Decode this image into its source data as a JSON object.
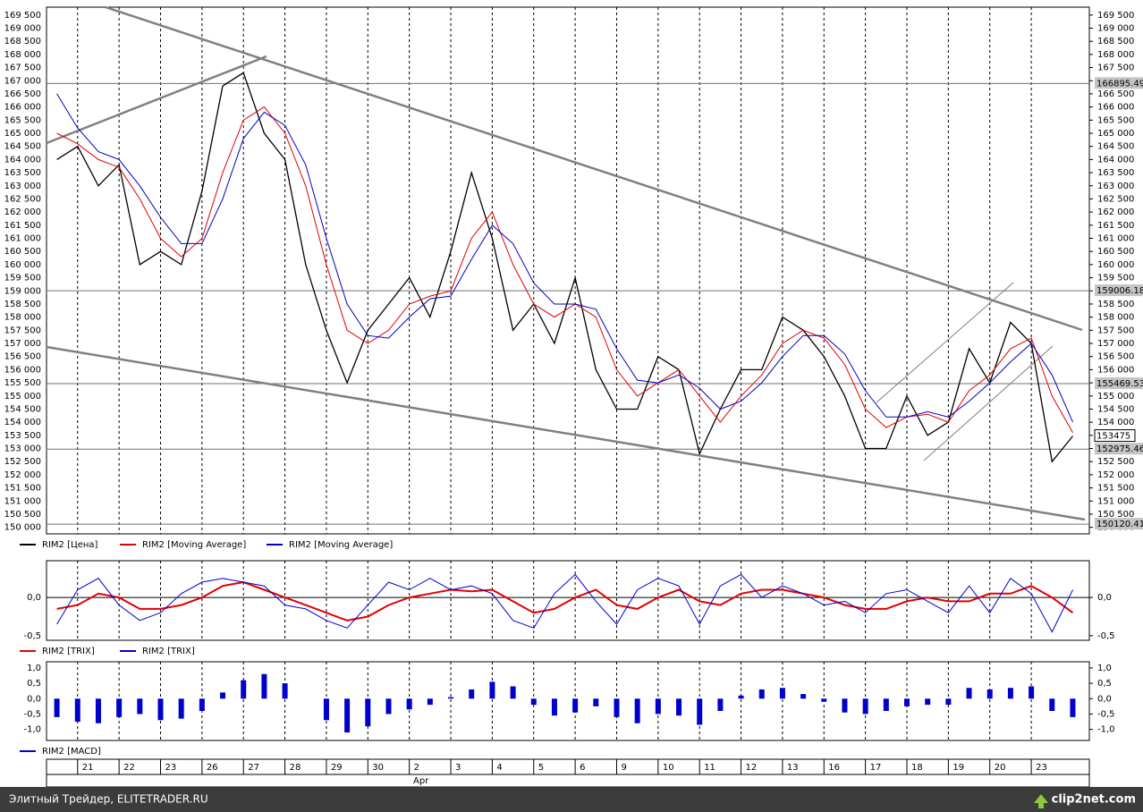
{
  "chart_data": [
    {
      "type": "line",
      "x": [
        -0.5,
        0,
        0.5,
        1,
        1.5,
        2,
        2.5,
        3,
        3.5,
        4,
        4.5,
        5,
        5.5,
        6,
        6.5,
        7,
        7.5,
        8,
        8.5,
        9,
        9.5,
        10,
        10.5,
        11,
        11.5,
        12,
        12.5,
        13,
        13.5,
        14,
        14.5,
        15,
        15.5,
        16,
        16.5,
        17,
        17.5,
        18,
        18.5,
        19,
        19.5,
        20,
        20.5,
        21,
        21.5,
        22,
        22.5,
        23,
        23.5,
        24
      ],
      "series": [
        {
          "name": "RIM2 [Цена]",
          "color": "#000000",
          "values": [
            164000,
            164500,
            163000,
            163800,
            160000,
            160500,
            160000,
            162800,
            166800,
            167300,
            165000,
            164000,
            160000,
            157500,
            155500,
            157500,
            158500,
            159500,
            158000,
            160500,
            163500,
            161000,
            157500,
            158500,
            157000,
            159500,
            156000,
            154500,
            154500,
            156500,
            156000,
            152800,
            154500,
            156000,
            156000,
            158000,
            157500,
            156500,
            155000,
            153000,
            153000,
            155000,
            153500,
            154000,
            156800,
            155500,
            157800,
            157000,
            152500,
            153475
          ]
        },
        {
          "name": "RIM2 [Moving Average]",
          "color": "#e00000",
          "values": [
            165000,
            164600,
            164000,
            163700,
            162500,
            161000,
            160300,
            161000,
            163500,
            165500,
            166000,
            165000,
            163000,
            160000,
            157500,
            157000,
            157500,
            158500,
            158800,
            159000,
            161000,
            162000,
            160000,
            158500,
            158000,
            158500,
            158000,
            156000,
            155000,
            155500,
            156000,
            155000,
            154000,
            155000,
            155800,
            157000,
            157500,
            157200,
            156200,
            154500,
            153800,
            154200,
            154300,
            154000,
            155200,
            155800,
            156800,
            157200,
            155000,
            153600
          ]
        },
        {
          "name": "RIM2 [Moving Average]",
          "color": "#0000c0",
          "values": [
            166500,
            165200,
            164300,
            164000,
            163000,
            161800,
            160800,
            160800,
            162500,
            164800,
            165800,
            165300,
            163800,
            161000,
            158500,
            157300,
            157200,
            158000,
            158700,
            158800,
            160200,
            161500,
            160800,
            159300,
            158500,
            158500,
            158300,
            156800,
            155600,
            155500,
            155800,
            155300,
            154500,
            154800,
            155500,
            156500,
            157300,
            157300,
            156600,
            155200,
            154200,
            154200,
            154400,
            154200,
            154800,
            155500,
            156300,
            157000,
            155800,
            154000
          ]
        }
      ],
      "xlim": [
        -0.75,
        24.4
      ],
      "xticks": [
        {
          "value": 0,
          "label": "21"
        },
        {
          "value": 1,
          "label": "22"
        },
        {
          "value": 2,
          "label": "23"
        },
        {
          "value": 3,
          "label": "26"
        },
        {
          "value": 4,
          "label": "27"
        },
        {
          "value": 5,
          "label": "28"
        },
        {
          "value": 6,
          "label": "29"
        },
        {
          "value": 7,
          "label": "30"
        },
        {
          "value": 8,
          "label": "2"
        },
        {
          "value": 9,
          "label": "3"
        },
        {
          "value": 10,
          "label": "4"
        },
        {
          "value": 11,
          "label": "5"
        },
        {
          "value": 12,
          "label": "6"
        },
        {
          "value": 13,
          "label": "9"
        },
        {
          "value": 14,
          "label": "10"
        },
        {
          "value": 15,
          "label": "11"
        },
        {
          "value": 16,
          "label": "12"
        },
        {
          "value": 17,
          "label": "13"
        },
        {
          "value": 18,
          "label": "16"
        },
        {
          "value": 19,
          "label": "17"
        },
        {
          "value": 20,
          "label": "18"
        },
        {
          "value": 21,
          "label": "19"
        },
        {
          "value": 22,
          "label": "20"
        },
        {
          "value": 23,
          "label": "23"
        }
      ],
      "month_label": "Apr",
      "ylim": [
        149750,
        169800
      ],
      "yticks": [
        {
          "value": 150000,
          "label": "150 000"
        },
        {
          "value": 150500,
          "label": "150 500"
        },
        {
          "value": 151000,
          "label": "151 000"
        },
        {
          "value": 151500,
          "label": "151 500"
        },
        {
          "value": 152000,
          "label": "152 000"
        },
        {
          "value": 152500,
          "label": "152 500"
        },
        {
          "value": 153000,
          "label": "153 000"
        },
        {
          "value": 153500,
          "label": "153 500"
        },
        {
          "value": 154000,
          "label": "154 000"
        },
        {
          "value": 154500,
          "label": "154 500"
        },
        {
          "value": 155000,
          "label": "155 000"
        },
        {
          "value": 155500,
          "label": "155 500"
        },
        {
          "value": 156000,
          "label": "156 000"
        },
        {
          "value": 156500,
          "label": "156 500"
        },
        {
          "value": 157000,
          "label": "157 000"
        },
        {
          "value": 157500,
          "label": "157 500"
        },
        {
          "value": 158000,
          "label": "158 000"
        },
        {
          "value": 158500,
          "label": "158 500"
        },
        {
          "value": 159000,
          "label": "159 000"
        },
        {
          "value": 159500,
          "label": "159 500"
        },
        {
          "value": 160000,
          "label": "160 000"
        },
        {
          "value": 160500,
          "label": "160 500"
        },
        {
          "value": 161000,
          "label": "161 000"
        },
        {
          "value": 161500,
          "label": "161 500"
        },
        {
          "value": 162000,
          "label": "162 000"
        },
        {
          "value": 162500,
          "label": "162 500"
        },
        {
          "value": 163000,
          "label": "163 000"
        },
        {
          "value": 163500,
          "label": "163 500"
        },
        {
          "value": 164000,
          "label": "164 000"
        },
        {
          "value": 164500,
          "label": "164 500"
        },
        {
          "value": 165000,
          "label": "165 000"
        },
        {
          "value": 165500,
          "label": "165 500"
        },
        {
          "value": 166000,
          "label": "166 000"
        },
        {
          "value": 166500,
          "label": "166 500"
        },
        {
          "value": 167000,
          "label": "167 000"
        },
        {
          "value": 167500,
          "label": "167 500"
        },
        {
          "value": 168000,
          "label": "168 000"
        },
        {
          "value": 168500,
          "label": "168 500"
        },
        {
          "value": 169000,
          "label": "169 000"
        },
        {
          "value": 169500,
          "label": "169 500"
        }
      ],
      "levels": [
        166895.49,
        159006.18,
        155469.53,
        152975.46,
        150120.41
      ],
      "last_price": 153475
    },
    {
      "type": "line",
      "x": [
        -0.5,
        0,
        0.5,
        1,
        1.5,
        2,
        2.5,
        3,
        3.5,
        4,
        4.5,
        5,
        5.5,
        6,
        6.5,
        7,
        7.5,
        8,
        8.5,
        9,
        9.5,
        10,
        10.5,
        11,
        11.5,
        12,
        12.5,
        13,
        13.5,
        14,
        14.5,
        15,
        15.5,
        16,
        16.5,
        17,
        17.5,
        18,
        18.5,
        19,
        19.5,
        20,
        20.5,
        21,
        21.5,
        22,
        22.5,
        23,
        23.5,
        24
      ],
      "series": [
        {
          "name": "RIM2 [TRIX]",
          "color": "#e00000",
          "values": [
            -0.15,
            -0.1,
            0.05,
            0,
            -0.15,
            -0.15,
            -0.1,
            0,
            0.15,
            0.2,
            0.1,
            0,
            -0.1,
            -0.2,
            -0.3,
            -0.25,
            -0.1,
            0,
            0.05,
            0.1,
            0.08,
            0.1,
            -0.05,
            -0.2,
            -0.15,
            0,
            0.1,
            -0.1,
            -0.15,
            0,
            0.1,
            -0.05,
            -0.1,
            0.05,
            0.1,
            0.1,
            0.05,
            0,
            -0.1,
            -0.15,
            -0.15,
            -0.05,
            0,
            -0.05,
            -0.05,
            0.05,
            0.05,
            0.15,
            0,
            -0.2
          ]
        },
        {
          "name": "RIM2 [TRIX]",
          "color": "#0000d0",
          "values": [
            -0.35,
            0.1,
            0.25,
            -0.1,
            -0.3,
            -0.2,
            0.05,
            0.2,
            0.25,
            0.2,
            0.15,
            -0.1,
            -0.15,
            -0.3,
            -0.4,
            -0.1,
            0.2,
            0.1,
            0.25,
            0.1,
            0.15,
            0.05,
            -0.3,
            -0.4,
            0.05,
            0.3,
            -0.05,
            -0.35,
            0.1,
            0.25,
            0.15,
            -0.35,
            0.15,
            0.3,
            0,
            0.15,
            0.05,
            -0.1,
            -0.05,
            -0.2,
            0.05,
            0.1,
            -0.05,
            -0.2,
            0.15,
            -0.2,
            0.25,
            0.05,
            -0.45,
            0.1
          ]
        }
      ],
      "xlim": [
        -0.75,
        24.4
      ],
      "ylim": [
        -0.56,
        0.48
      ],
      "yticks": [
        {
          "value": 0,
          "label": "0,0"
        },
        {
          "value": -0.5,
          "label": "-0,5"
        }
      ]
    },
    {
      "type": "bar",
      "x": [
        -0.5,
        0,
        0.5,
        1,
        1.5,
        2,
        2.5,
        3,
        3.5,
        4,
        4.5,
        5,
        5.5,
        6,
        6.5,
        7,
        7.5,
        8,
        8.5,
        9,
        9.5,
        10,
        10.5,
        11,
        11.5,
        12,
        12.5,
        13,
        13.5,
        14,
        14.5,
        15,
        15.5,
        16,
        16.5,
        17,
        17.5,
        18,
        18.5,
        19,
        19.5,
        20,
        20.5,
        21,
        21.5,
        22,
        22.5,
        23,
        23.5,
        24
      ],
      "series": [
        {
          "name": "RIM2 [MACD]",
          "color": "#0000cc",
          "values": [
            -0.6,
            -0.75,
            -0.8,
            -0.6,
            -0.5,
            -0.7,
            -0.65,
            -0.4,
            0.2,
            0.6,
            0.8,
            0.5,
            0,
            -0.7,
            -1.1,
            -0.9,
            -0.5,
            -0.35,
            -0.2,
            0.05,
            0.3,
            0.55,
            0.4,
            -0.2,
            -0.55,
            -0.45,
            -0.25,
            -0.6,
            -0.8,
            -0.5,
            -0.55,
            -0.85,
            -0.4,
            0.1,
            0.3,
            0.35,
            0.15,
            -0.1,
            -0.45,
            -0.5,
            -0.4,
            -0.25,
            -0.2,
            -0.2,
            0.35,
            0.3,
            0.35,
            0.4,
            -0.4,
            -0.6
          ]
        }
      ],
      "xlim": [
        -0.75,
        24.4
      ],
      "ylim": [
        -1.36,
        1.2
      ],
      "yticks": [
        {
          "value": 1,
          "label": "1,0"
        },
        {
          "value": 0.5,
          "label": "0,5"
        },
        {
          "value": 0,
          "label": "0,0"
        },
        {
          "value": -0.5,
          "label": "-0,5"
        },
        {
          "value": -1,
          "label": "-1,0"
        }
      ]
    }
  ],
  "footer": {
    "left": "Элитный Трейдер, ELITETRADER.RU",
    "right": "clip2net.com"
  }
}
